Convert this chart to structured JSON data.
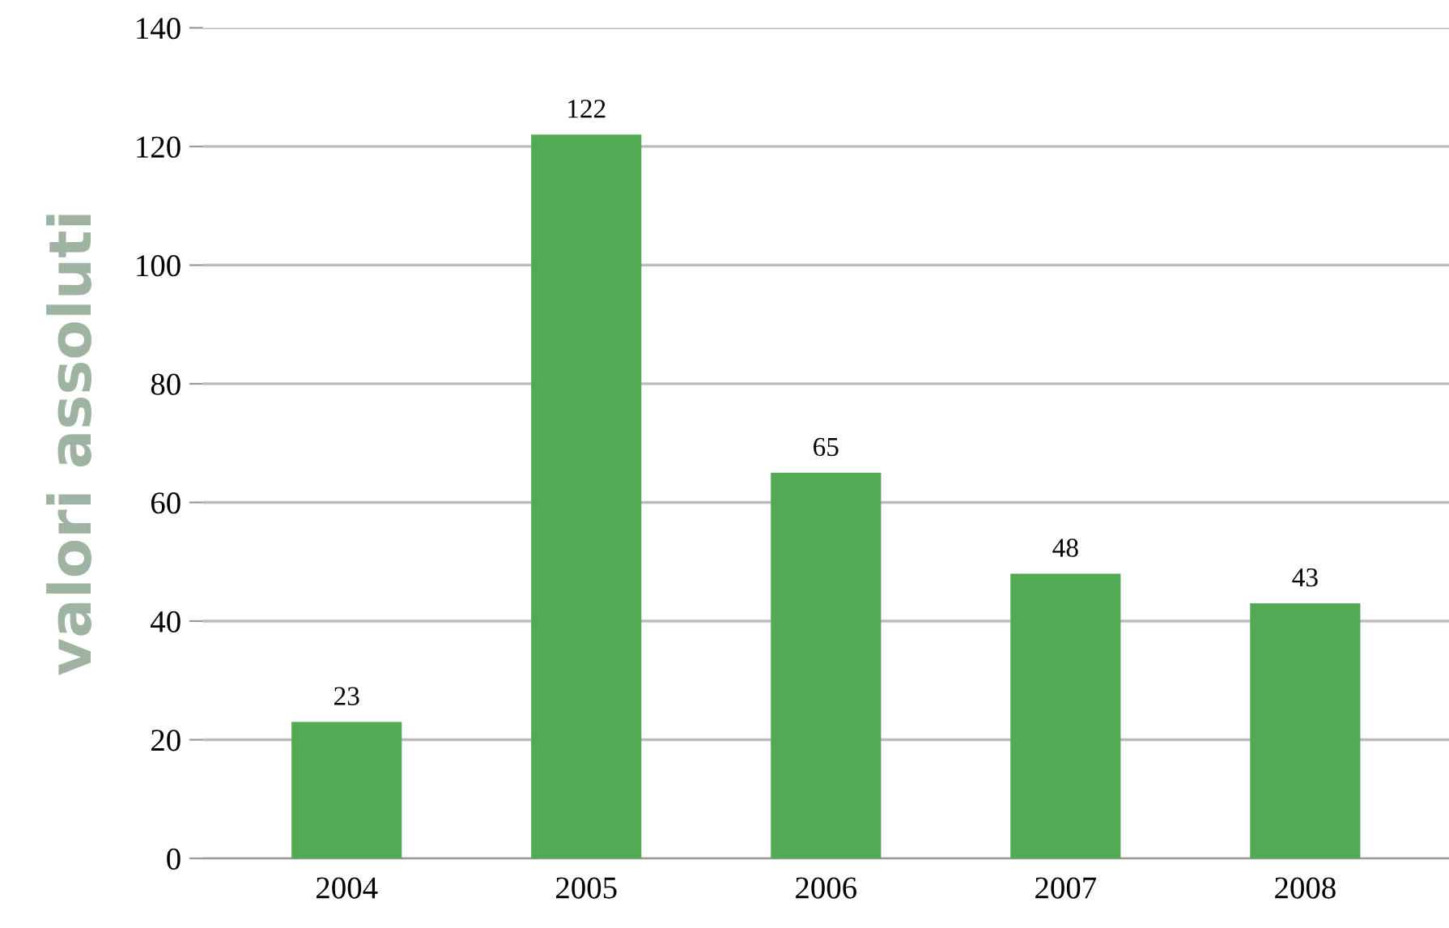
{
  "chart_data": {
    "type": "bar",
    "ylabel": "valori assoluti",
    "categories": [
      "2004",
      "2005",
      "2006",
      "2007",
      "2008"
    ],
    "values": [
      23,
      122,
      65,
      48,
      43
    ],
    "color": "#52aa55",
    "ylim": [
      0,
      140
    ],
    "yticks": [
      0,
      20,
      40,
      60,
      80,
      100,
      120,
      140
    ],
    "grid": "y",
    "data_labels": true
  }
}
